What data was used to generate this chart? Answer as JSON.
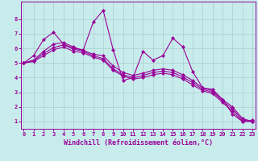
{
  "background_color": "#c8ecec",
  "line_color": "#990099",
  "grid_color": "#aacccc",
  "xlabel": "Windchill (Refroidissement éolien,°C)",
  "xlim": [
    0,
    23
  ],
  "ylim": [
    0.5,
    9.2
  ],
  "xticks": [
    0,
    1,
    2,
    3,
    4,
    5,
    6,
    7,
    8,
    9,
    10,
    11,
    12,
    13,
    14,
    15,
    16,
    17,
    18,
    19,
    20,
    21,
    22,
    23
  ],
  "yticks": [
    1,
    2,
    3,
    4,
    5,
    6,
    7,
    8
  ],
  "curves": [
    [
      5.0,
      5.5,
      6.6,
      7.1,
      6.3,
      6.0,
      5.9,
      7.8,
      8.6,
      5.9,
      3.8,
      4.0,
      5.8,
      5.2,
      5.5,
      6.7,
      6.1,
      4.4,
      3.3,
      3.2,
      2.5,
      1.5,
      1.0,
      1.1
    ],
    [
      5.0,
      5.2,
      5.8,
      6.3,
      6.4,
      6.1,
      5.85,
      5.6,
      5.5,
      4.8,
      4.35,
      4.15,
      4.3,
      4.5,
      4.6,
      4.5,
      4.2,
      3.8,
      3.3,
      3.1,
      2.5,
      2.0,
      1.2,
      1.0
    ],
    [
      5.0,
      5.15,
      5.65,
      6.05,
      6.25,
      5.95,
      5.8,
      5.5,
      5.3,
      4.6,
      4.2,
      4.0,
      4.15,
      4.35,
      4.45,
      4.35,
      4.05,
      3.65,
      3.2,
      3.0,
      2.4,
      1.85,
      1.1,
      1.0
    ],
    [
      5.0,
      5.1,
      5.5,
      5.9,
      6.1,
      5.8,
      5.7,
      5.4,
      5.2,
      4.5,
      4.1,
      3.9,
      4.0,
      4.2,
      4.3,
      4.2,
      3.9,
      3.5,
      3.1,
      2.9,
      2.3,
      1.7,
      1.0,
      1.0
    ]
  ]
}
